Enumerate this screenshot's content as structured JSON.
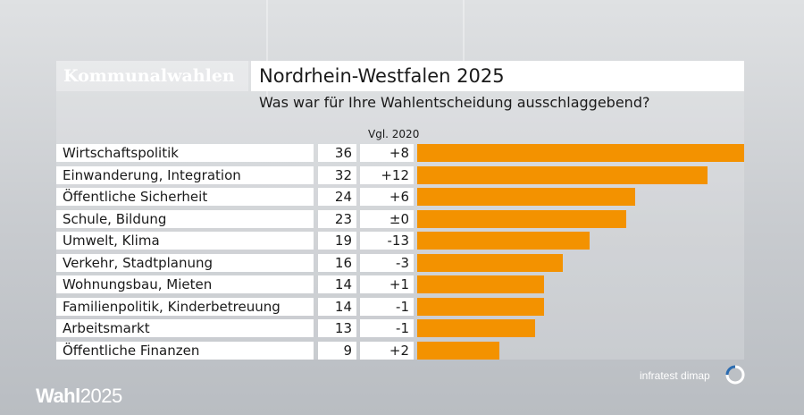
{
  "header": {
    "section": "Kommunalwahlen",
    "title": "Nordrhein-Westfalen 2025",
    "subtitle": "Was war für Ihre Wahlentscheidung ausschlaggebend?"
  },
  "compare_label": "Vgl. 2020",
  "footer": {
    "brand": "Wahl",
    "brand_year": "2025",
    "source": "infratest dimap"
  },
  "colors": {
    "bar": "#f39200",
    "cell": "#ffffff",
    "text": "#1a1a1a"
  },
  "chart_data": {
    "type": "bar",
    "orientation": "horizontal",
    "categories": [
      "Wirtschaftspolitik",
      "Einwanderung, Integration",
      "Öffentliche Sicherheit",
      "Schule, Bildung",
      "Umwelt, Klima",
      "Verkehr, Stadtplanung",
      "Wohnungsbau, Mieten",
      "Familienpolitik, Kinderbetreuung",
      "Arbeitsmarkt",
      "Öffentliche Finanzen"
    ],
    "values": [
      36,
      32,
      24,
      23,
      19,
      16,
      14,
      14,
      13,
      9
    ],
    "changes": [
      "+8",
      "+12",
      "+6",
      "±0",
      "-13",
      "-3",
      "+1",
      "-1",
      "-1",
      "+2"
    ],
    "xlim": [
      0,
      36
    ],
    "grid": false
  }
}
